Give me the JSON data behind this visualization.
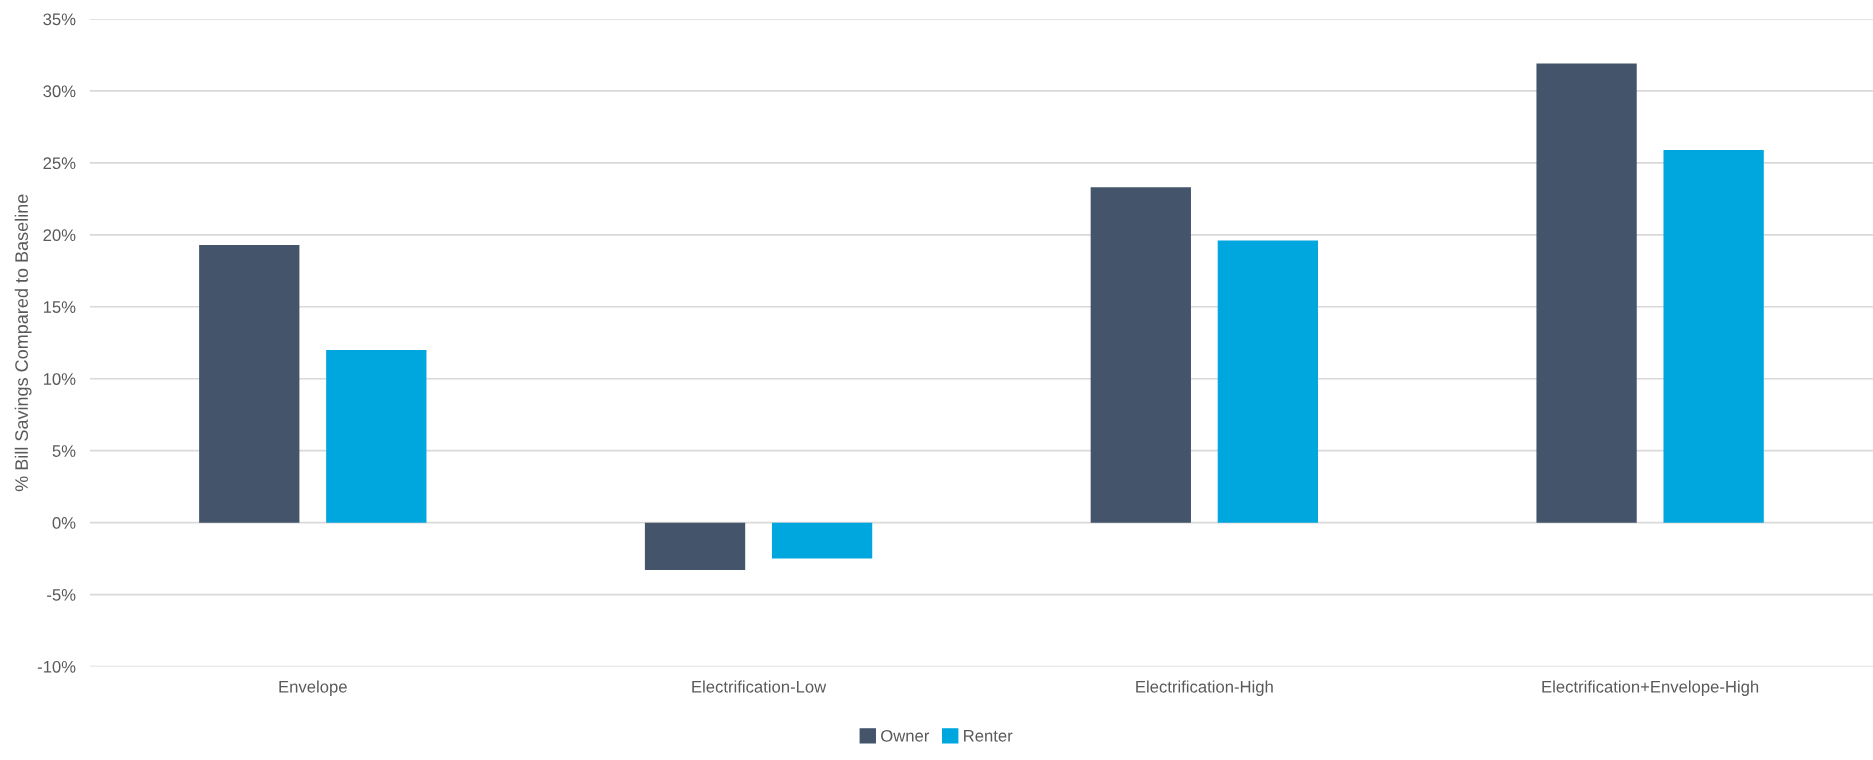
{
  "chart_data": {
    "type": "bar",
    "ylabel": "% Bill Savings Compared to Baseline",
    "categories": [
      "Envelope",
      "Electrification-Low",
      "Electrification-High",
      "Electrification+Envelope-High"
    ],
    "series": [
      {
        "name": "Owner",
        "color": "#44546a",
        "values": [
          19.3,
          -3.3,
          23.3,
          31.9
        ]
      },
      {
        "name": "Renter",
        "color": "#00a6de",
        "values": [
          12.0,
          -2.5,
          19.6,
          25.9
        ]
      }
    ],
    "ylim": [
      -10,
      35
    ],
    "yticks": [
      {
        "value": -10,
        "label": "-10%"
      },
      {
        "value": -5,
        "label": "-5%"
      },
      {
        "value": 0,
        "label": "0%"
      },
      {
        "value": 5,
        "label": "5%"
      },
      {
        "value": 10,
        "label": "10%"
      },
      {
        "value": 15,
        "label": "15%"
      },
      {
        "value": 20,
        "label": "20%"
      },
      {
        "value": 25,
        "label": "25%"
      },
      {
        "value": 30,
        "label": "30%"
      },
      {
        "value": 35,
        "label": "35%"
      }
    ],
    "grid": "y",
    "legend": "bottom"
  }
}
